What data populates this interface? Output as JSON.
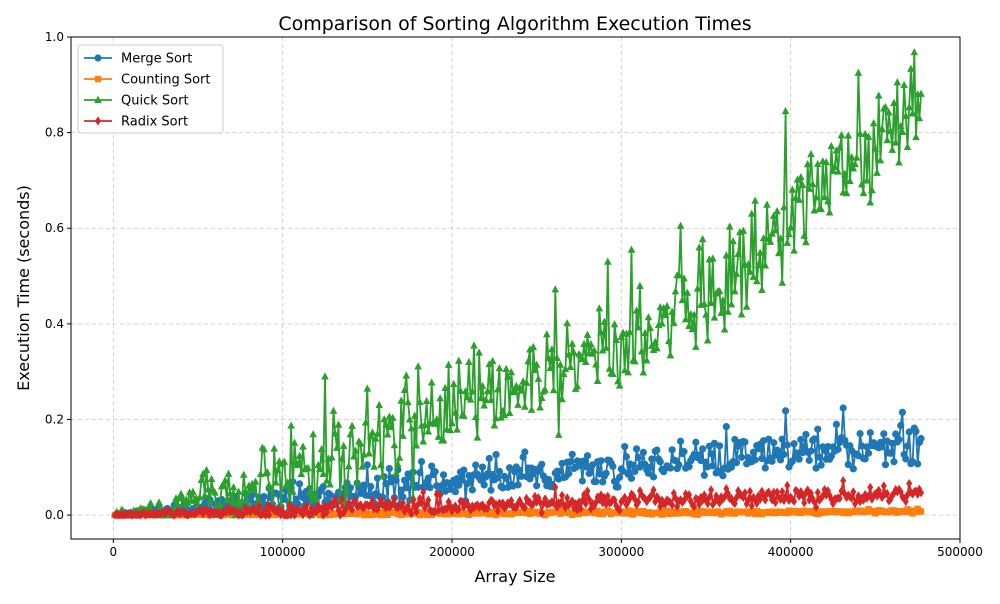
{
  "chart_data": {
    "type": "line",
    "title": "Comparison of Sorting Algorithm Execution Times",
    "xlabel": "Array Size",
    "ylabel": "Execution Time (seconds)",
    "xlim": [
      -25000,
      500000
    ],
    "ylim": [
      -0.05,
      1.0
    ],
    "xticks": [
      0,
      100000,
      200000,
      300000,
      400000,
      500000
    ],
    "yticks": [
      0.0,
      0.2,
      0.4,
      0.6,
      0.8,
      1.0
    ],
    "xtick_labels": [
      "0",
      "100000",
      "200000",
      "300000",
      "400000",
      "500000"
    ],
    "ytick_labels": [
      "0.0",
      "0.2",
      "0.4",
      "0.6",
      "0.8",
      "1.0"
    ],
    "grid": true,
    "legend_position": "top-left",
    "x_sampling": {
      "start": 1000,
      "stop": 477000,
      "step": 1000
    },
    "series": [
      {
        "name": "Merge Sort",
        "color": "#1f77b4",
        "marker": "circle",
        "trend_points": [
          [
            1000,
            0.0
          ],
          [
            50000,
            0.012
          ],
          [
            100000,
            0.03
          ],
          [
            150000,
            0.05
          ],
          [
            200000,
            0.07
          ],
          [
            250000,
            0.085
          ],
          [
            300000,
            0.1
          ],
          [
            350000,
            0.115
          ],
          [
            400000,
            0.13
          ],
          [
            450000,
            0.145
          ],
          [
            477000,
            0.15
          ]
        ],
        "noise_sd": 0.02,
        "peak_values": [
          [
            150000,
            0.105
          ],
          [
            182000,
            0.112
          ],
          [
            243000,
            0.132
          ],
          [
            362000,
            0.185
          ],
          [
            397000,
            0.218
          ],
          [
            431000,
            0.224
          ],
          [
            466000,
            0.215
          ],
          [
            474000,
            0.175
          ]
        ]
      },
      {
        "name": "Counting Sort",
        "color": "#ff7f0e",
        "marker": "square",
        "trend_points": [
          [
            1000,
            0.0
          ],
          [
            100000,
            0.002
          ],
          [
            200000,
            0.004
          ],
          [
            300000,
            0.005
          ],
          [
            400000,
            0.006
          ],
          [
            477000,
            0.008
          ]
        ],
        "noise_sd": 0.002,
        "peak_values": []
      },
      {
        "name": "Quick Sort",
        "color": "#2ca02c",
        "marker": "triangle",
        "trend_points": [
          [
            1000,
            0.0
          ],
          [
            50000,
            0.025
          ],
          [
            100000,
            0.085
          ],
          [
            150000,
            0.15
          ],
          [
            200000,
            0.22
          ],
          [
            250000,
            0.28
          ],
          [
            300000,
            0.36
          ],
          [
            350000,
            0.47
          ],
          [
            400000,
            0.6
          ],
          [
            450000,
            0.78
          ],
          [
            477000,
            0.87
          ]
        ],
        "noise_sd": 0.05,
        "peak_values": [
          [
            130000,
            0.218
          ],
          [
            157000,
            0.23
          ],
          [
            210000,
            0.32
          ],
          [
            261000,
            0.472
          ],
          [
            292000,
            0.53
          ],
          [
            306000,
            0.555
          ],
          [
            335000,
            0.605
          ],
          [
            397000,
            0.845
          ],
          [
            440000,
            0.925
          ],
          [
            473000,
            0.968
          ]
        ]
      },
      {
        "name": "Radix Sort",
        "color": "#d62728",
        "marker": "diamond",
        "trend_points": [
          [
            1000,
            0.0
          ],
          [
            100000,
            0.01
          ],
          [
            200000,
            0.02
          ],
          [
            300000,
            0.028
          ],
          [
            400000,
            0.038
          ],
          [
            477000,
            0.046
          ]
        ],
        "noise_sd": 0.008,
        "peak_values": [
          [
            183000,
            0.048
          ],
          [
            261000,
            0.058
          ],
          [
            398000,
            0.062
          ],
          [
            431000,
            0.072
          ],
          [
            470000,
            0.066
          ]
        ]
      }
    ]
  }
}
